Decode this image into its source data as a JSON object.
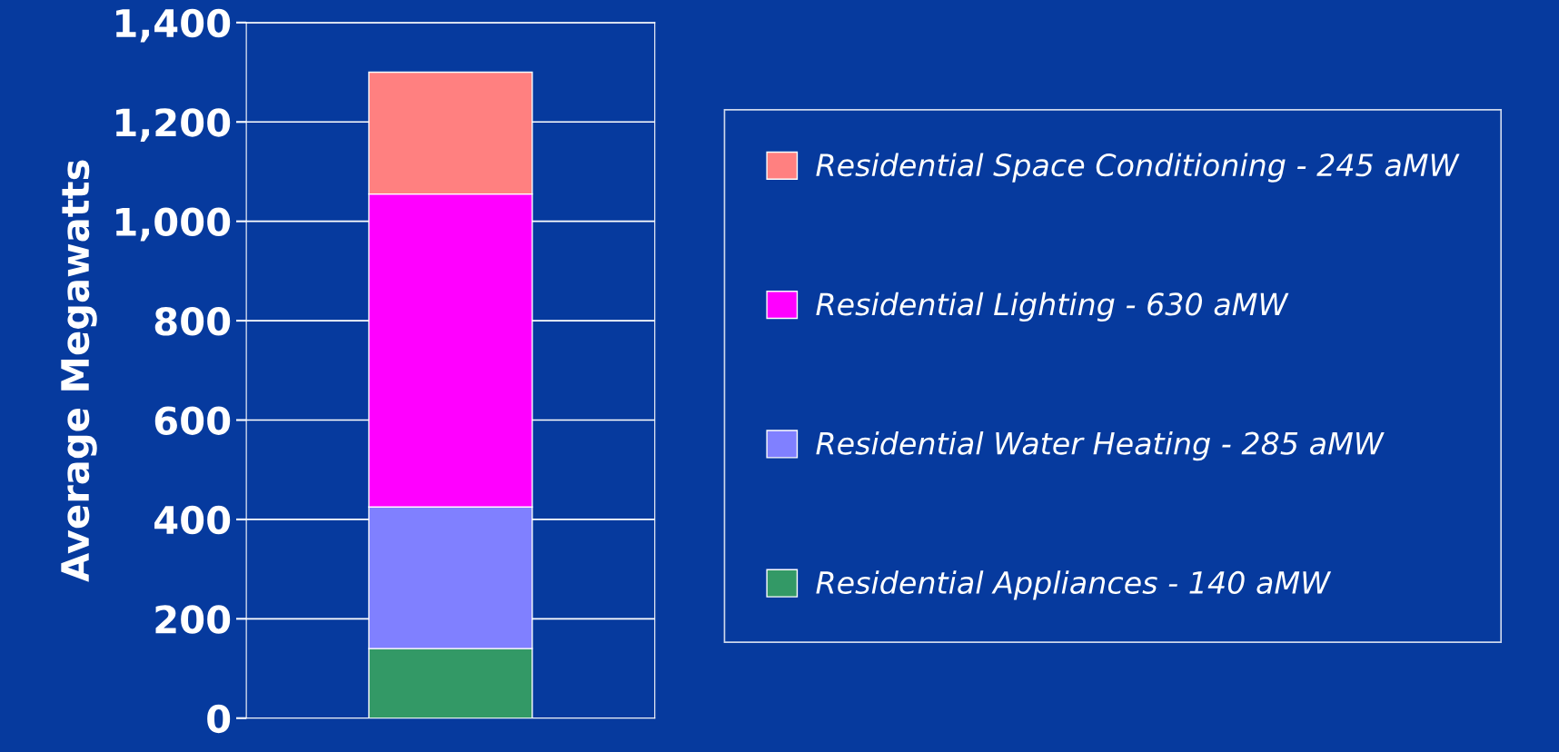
{
  "chart_data": {
    "type": "bar",
    "stacked": true,
    "categories": [
      null
    ],
    "ylabel": "Average Megawatts",
    "series": [
      {
        "name": "Residential Appliances - 140 aMW",
        "color": "#339966",
        "values": [
          140
        ]
      },
      {
        "name": "Residential Water Heating - 285 aMW",
        "color": "#8080ff",
        "values": [
          285
        ]
      },
      {
        "name": "Residential Lighting - 630 aMW",
        "color": "#ff00ff",
        "values": [
          630
        ]
      },
      {
        "name": "Residential Space Conditioning - 245 aMW",
        "color": "#ff8080",
        "values": [
          245
        ]
      }
    ],
    "ylim": [
      0,
      1400
    ],
    "yticks": [
      {
        "value": 0,
        "label": "0"
      },
      {
        "value": 200,
        "label": "200"
      },
      {
        "value": 400,
        "label": "400"
      },
      {
        "value": 600,
        "label": "600"
      },
      {
        "value": 800,
        "label": "800"
      },
      {
        "value": 1000,
        "label": "1,000"
      },
      {
        "value": 1200,
        "label": "1,200"
      },
      {
        "value": 1400,
        "label": "1,400"
      }
    ],
    "grid": "y",
    "legend": "right"
  }
}
